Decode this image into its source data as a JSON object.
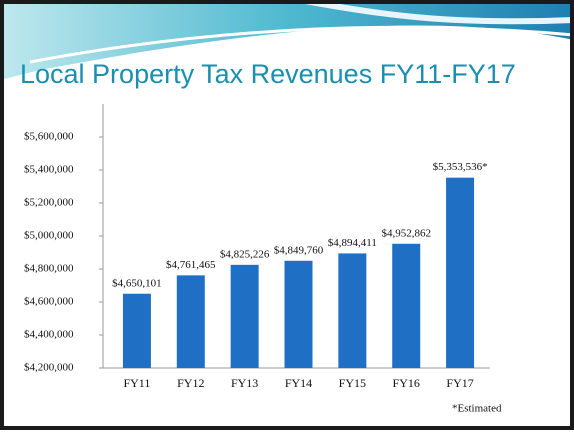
{
  "chart_data": {
    "type": "bar",
    "title": "Local Property Tax Revenues FY11-FY17",
    "categories": [
      "FY11",
      "FY12",
      "FY13",
      "FY14",
      "FY15",
      "FY16",
      "FY17"
    ],
    "values": [
      4650101,
      4761465,
      4825226,
      4849760,
      4894411,
      4952862,
      5353536
    ],
    "value_labels": [
      "$4,650,101",
      "$4,761,465",
      "$4,825,226",
      "$4,849,760",
      "$4,894,411",
      "$4,952,862",
      "$5,353,536*"
    ],
    "color": "#1f6fc5",
    "ylim": [
      4200000,
      5600000
    ],
    "yticks": [
      {
        "value": 4200000,
        "label": "$4,200,000"
      },
      {
        "value": 4400000,
        "label": "$4,400,000"
      },
      {
        "value": 4600000,
        "label": "$4,600,000"
      },
      {
        "value": 4800000,
        "label": "$4,800,000"
      },
      {
        "value": 5000000,
        "label": "$5,000,000"
      },
      {
        "value": 5200000,
        "label": "$5,200,000"
      },
      {
        "value": 5400000,
        "label": "$5,400,000"
      },
      {
        "value": 5600000,
        "label": "$5,600,000"
      }
    ],
    "grid": false,
    "annotation": "*Estimated"
  }
}
